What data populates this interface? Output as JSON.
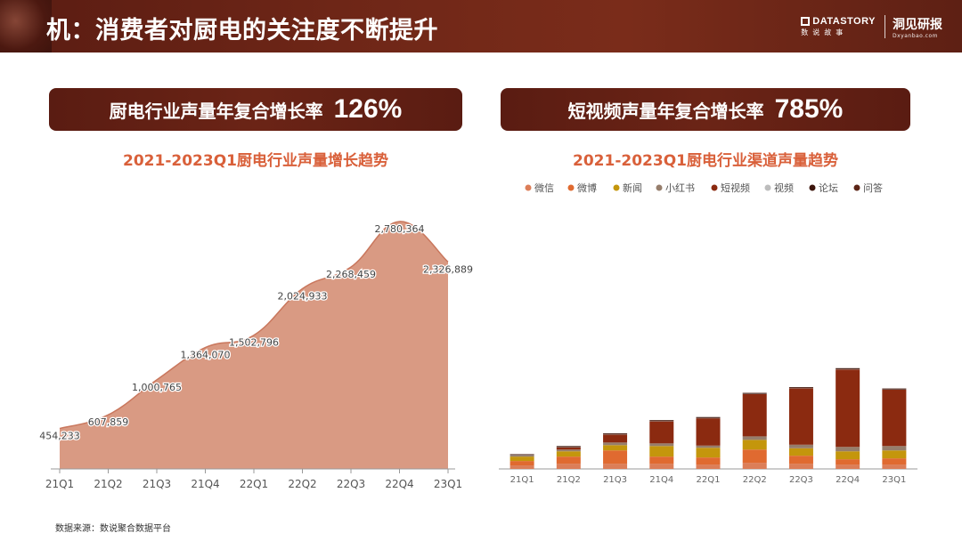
{
  "header": {
    "title": "机：消费者对厨电的关注度不断提升",
    "brand1_name": "DATASTORY",
    "brand1_sub": "数说故事",
    "brand2_name": "洞见研报",
    "brand2_sub": "Dxyanbao.com"
  },
  "banners": {
    "left_label": "厨电行业声量年复合增长率",
    "left_value": "126%",
    "right_label": "短视频声量年复合增长率",
    "right_value": "785%"
  },
  "source": "数据来源：数说聚合数据平台",
  "chart_data": [
    {
      "type": "area",
      "title": "2021-2023Q1厨电行业声量增长趋势",
      "categories": [
        "21Q1",
        "21Q2",
        "21Q3",
        "21Q4",
        "22Q1",
        "22Q2",
        "22Q3",
        "22Q4",
        "23Q1"
      ],
      "values": [
        454233,
        607859,
        1000765,
        1364070,
        1502796,
        2024933,
        2268459,
        2780364,
        2326889
      ],
      "labels": [
        "454,233",
        "607,859",
        "1,000,765",
        "1,364,070",
        "1,502,796",
        "2,024,933",
        "2,268,459",
        "2,780,364",
        "2,326,889"
      ],
      "ylim": [
        0,
        3000000
      ],
      "color": "#d99a83",
      "line_color": "#c9775d"
    },
    {
      "type": "bar",
      "stacked": true,
      "title": "2021-2023Q1厨电行业渠道声量趋势",
      "categories": [
        "21Q1",
        "21Q2",
        "21Q3",
        "21Q4",
        "22Q1",
        "22Q2",
        "22Q3",
        "22Q4",
        "23Q1"
      ],
      "legend_position": "top",
      "ylim": [
        0,
        2800000
      ],
      "series": [
        {
          "name": "微信",
          "color": "#dc7e58",
          "values": [
            40000,
            60000,
            60000,
            60000,
            50000,
            70000,
            60000,
            50000,
            50000
          ]
        },
        {
          "name": "微博",
          "color": "#e06a30",
          "values": [
            50000,
            80000,
            150000,
            80000,
            80000,
            150000,
            90000,
            60000,
            70000
          ]
        },
        {
          "name": "新闻",
          "color": "#c4960c",
          "values": [
            50000,
            60000,
            60000,
            120000,
            110000,
            110000,
            85000,
            90000,
            90000
          ]
        },
        {
          "name": "小红书",
          "color": "#967e6c",
          "values": [
            15000,
            20000,
            30000,
            30000,
            25000,
            40000,
            40000,
            50000,
            50000
          ]
        },
        {
          "name": "短视频",
          "color": "#8b2a10",
          "values": [
            0,
            25000,
            90000,
            250000,
            310000,
            480000,
            640000,
            880000,
            640000
          ]
        },
        {
          "name": "视频",
          "color": "#bdbdbd",
          "values": [
            3000,
            3000,
            3000,
            3000,
            3000,
            3000,
            3000,
            3000,
            3000
          ]
        },
        {
          "name": "论坛",
          "color": "#3c150c",
          "values": [
            8000,
            10000,
            10000,
            10000,
            10000,
            10000,
            10000,
            10000,
            10000
          ]
        },
        {
          "name": "问答",
          "color": "#5c2416",
          "values": [
            2000,
            2000,
            2000,
            2000,
            2000,
            2000,
            2000,
            2000,
            2000
          ]
        }
      ]
    }
  ]
}
